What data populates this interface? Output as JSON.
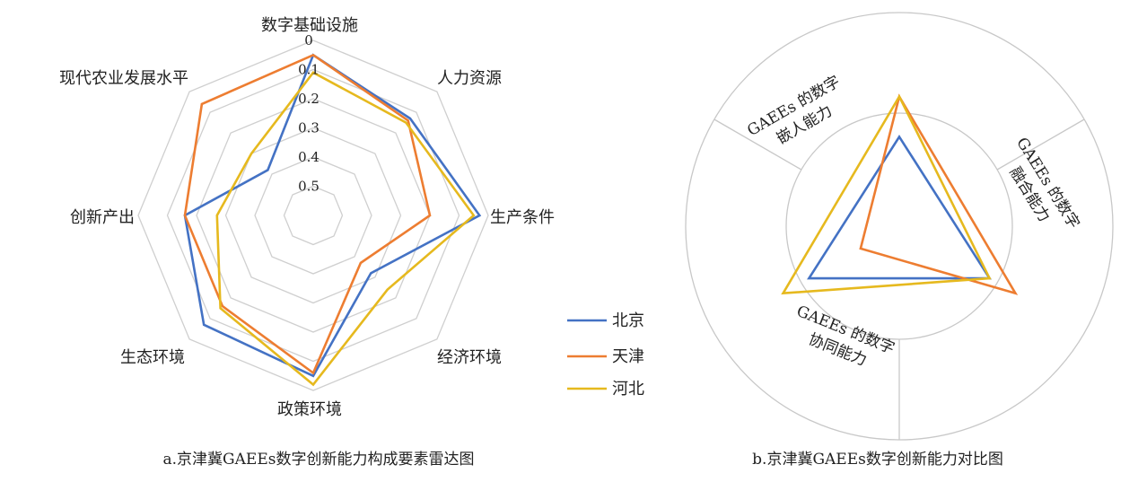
{
  "chart_data": [
    {
      "type": "radar",
      "caption": "a.京津冀GAEEs数字创新能力构成要素雷达图",
      "axes": [
        "数字基础设施",
        "人力资源",
        "生产条件",
        "经济环境",
        "政策环境",
        "生态环境",
        "创新产出",
        "现代农业发展水平"
      ],
      "ticks": [
        "0",
        "0.1",
        "0.2",
        "0.3",
        "0.4",
        "0.5"
      ],
      "range": [
        0,
        0.6
      ],
      "reversed": true,
      "grid": true,
      "legend_position": "right",
      "series": [
        {
          "name": "北京",
          "color": "#4472c4",
          "values": [
            0.05,
            0.13,
            0.03,
            0.32,
            0.05,
            0.07,
            0.16,
            0.38
          ]
        },
        {
          "name": "天津",
          "color": "#ed7d31",
          "values": [
            0.05,
            0.14,
            0.2,
            0.37,
            0.06,
            0.16,
            0.16,
            0.06
          ]
        },
        {
          "name": "河北",
          "color": "#e6b91e",
          "values": [
            0.11,
            0.15,
            0.05,
            0.24,
            0.02,
            0.15,
            0.27,
            0.3
          ]
        }
      ]
    },
    {
      "type": "radar",
      "caption": "b.京津冀GAEEs数字创新能力对比图",
      "axes": [
        "GAEEs 的数字嵌人能力",
        "GAEEs 的数字融合能力",
        "GAEEs 的数字协同能力"
      ],
      "axis_label_lines": [
        [
          "GAEEs 的数字",
          "嵌人能力"
        ],
        [
          "GAEEs 的数字",
          "融合能力"
        ],
        [
          "GAEEs 的数字",
          "协同能力"
        ]
      ],
      "grid": true,
      "series": [
        {
          "name": "北京",
          "color": "#4472c4",
          "values": [
            0.6,
            0.7,
            0.7
          ]
        },
        {
          "name": "天津",
          "color": "#ed7d31",
          "values": [
            0.87,
            0.9,
            0.3
          ]
        },
        {
          "name": "河北",
          "color": "#e6b91e",
          "values": [
            0.87,
            0.7,
            0.9
          ]
        }
      ]
    }
  ]
}
